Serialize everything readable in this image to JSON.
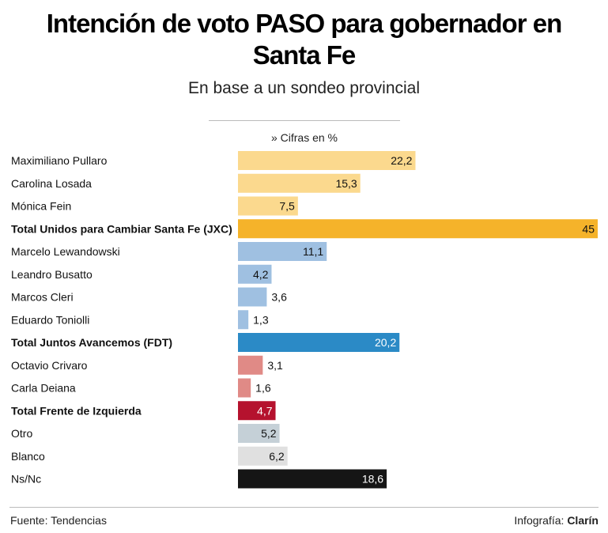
{
  "header": {
    "title_line1": "Intención de voto PASO para gobernador en",
    "title_line2": "Santa Fe",
    "subtitle": "En base a un sondeo provincial",
    "unit_note": "» Cifras en %"
  },
  "footer": {
    "source": "Fuente: Tendencias",
    "credit_prefix": "Infografía:",
    "credit_brand": "Clarín"
  },
  "chart_data": {
    "type": "bar",
    "orientation": "horizontal",
    "title": "Intención de voto PASO para gobernador en Santa Fe",
    "subtitle": "En base a un sondeo provincial",
    "unit": "» Cifras en %",
    "categories": [
      "Maximiliano Pullaro",
      "Carolina Losada",
      "Mónica Fein",
      "Total Unidos para Cambiar Santa Fe (JXC)",
      "Marcelo Lewandowski",
      "Leandro Busatto",
      "Marcos Cleri",
      "Eduardo Toniolli",
      "Total Juntos Avancemos (FDT)",
      "Octavio Crivaro",
      "Carla Deiana",
      "Total Frente de Izquierda",
      "Otro",
      "Blanco",
      "Ns/Nc"
    ],
    "values": [
      22.2,
      15.3,
      7.5,
      45,
      11.1,
      4.2,
      3.6,
      1.3,
      20.2,
      3.1,
      1.6,
      4.7,
      5.2,
      6.2,
      18.6
    ],
    "value_labels": [
      "22,2",
      "15,3",
      "7,5",
      "45",
      "11,1",
      "4,2",
      "3,6",
      "1,3",
      "20,2",
      "3,1",
      "1,6",
      "4,7",
      "5,2",
      "6,2",
      "18,6"
    ],
    "bold": [
      false,
      false,
      false,
      true,
      false,
      false,
      false,
      false,
      true,
      false,
      false,
      true,
      false,
      false,
      false
    ],
    "colors": [
      "#fbd98e",
      "#fbd98e",
      "#fbd98e",
      "#f5b32a",
      "#9fc0e1",
      "#9fc0e1",
      "#9fc0e1",
      "#9fc0e1",
      "#2b8ac6",
      "#e08a86",
      "#e08a86",
      "#b5122e",
      "#c5d0d7",
      "#e0e0e0",
      "#151515"
    ],
    "xlim": [
      0,
      45
    ],
    "grid": false
  }
}
